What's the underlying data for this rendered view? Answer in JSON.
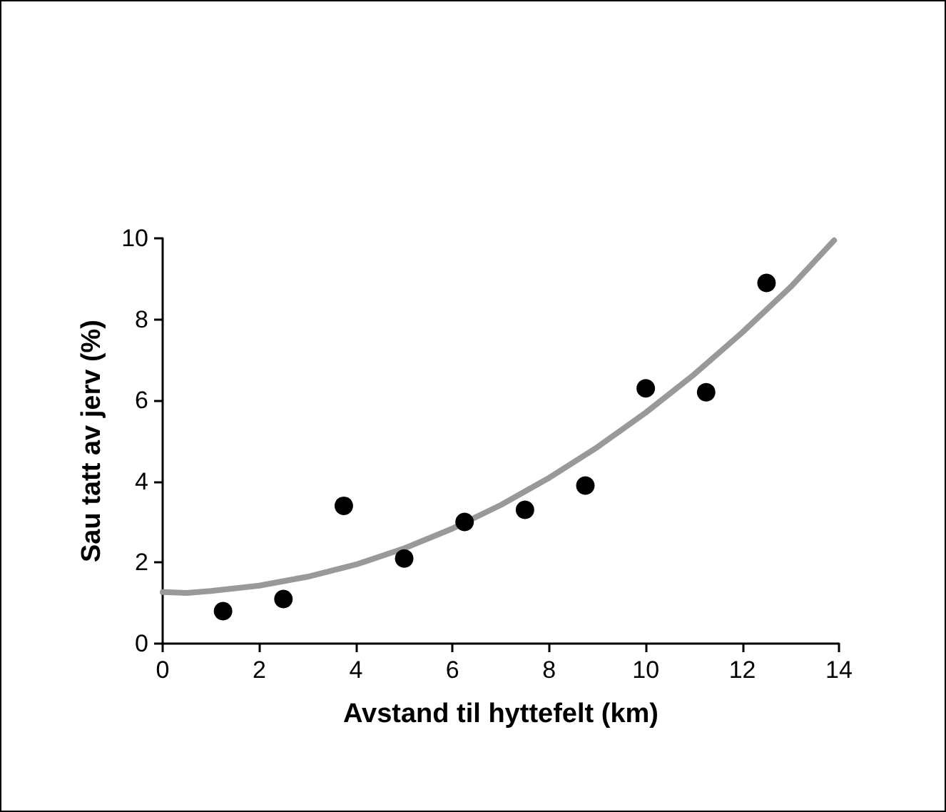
{
  "chart_data": {
    "type": "scatter",
    "xlabel": "Avstand til hyttefelt (km)",
    "ylabel": "Sau tatt av jerv (%)",
    "xlim": [
      0,
      14
    ],
    "xticks": [
      0,
      2,
      4,
      6,
      8,
      10,
      12,
      14
    ],
    "ylim": [
      0,
      10
    ],
    "yticks": [
      0,
      2,
      4,
      6,
      8,
      10
    ],
    "grid": false,
    "marker": "circle",
    "series": [
      {
        "type": "line",
        "color": "#999999",
        "line_style": "solid",
        "marker": "none",
        "x": [
          0,
          0.5,
          1,
          2,
          3,
          4,
          5,
          6,
          7,
          8,
          9,
          10,
          11,
          12,
          13,
          13.9
        ],
        "values": [
          1.27,
          1.25,
          1.3,
          1.43,
          1.65,
          1.95,
          2.35,
          2.84,
          3.42,
          4.09,
          4.85,
          5.7,
          6.64,
          7.68,
          8.8,
          9.95
        ]
      },
      {
        "type": "scatter",
        "color": "#000000",
        "x": [
          1.25,
          2.5,
          3.75,
          5,
          6.25,
          7.5,
          8.75,
          10,
          11.25,
          12.5
        ],
        "values": [
          0.8,
          1.1,
          3.4,
          2.1,
          3.0,
          3.3,
          3.9,
          6.3,
          6.2,
          8.9
        ]
      }
    ]
  }
}
